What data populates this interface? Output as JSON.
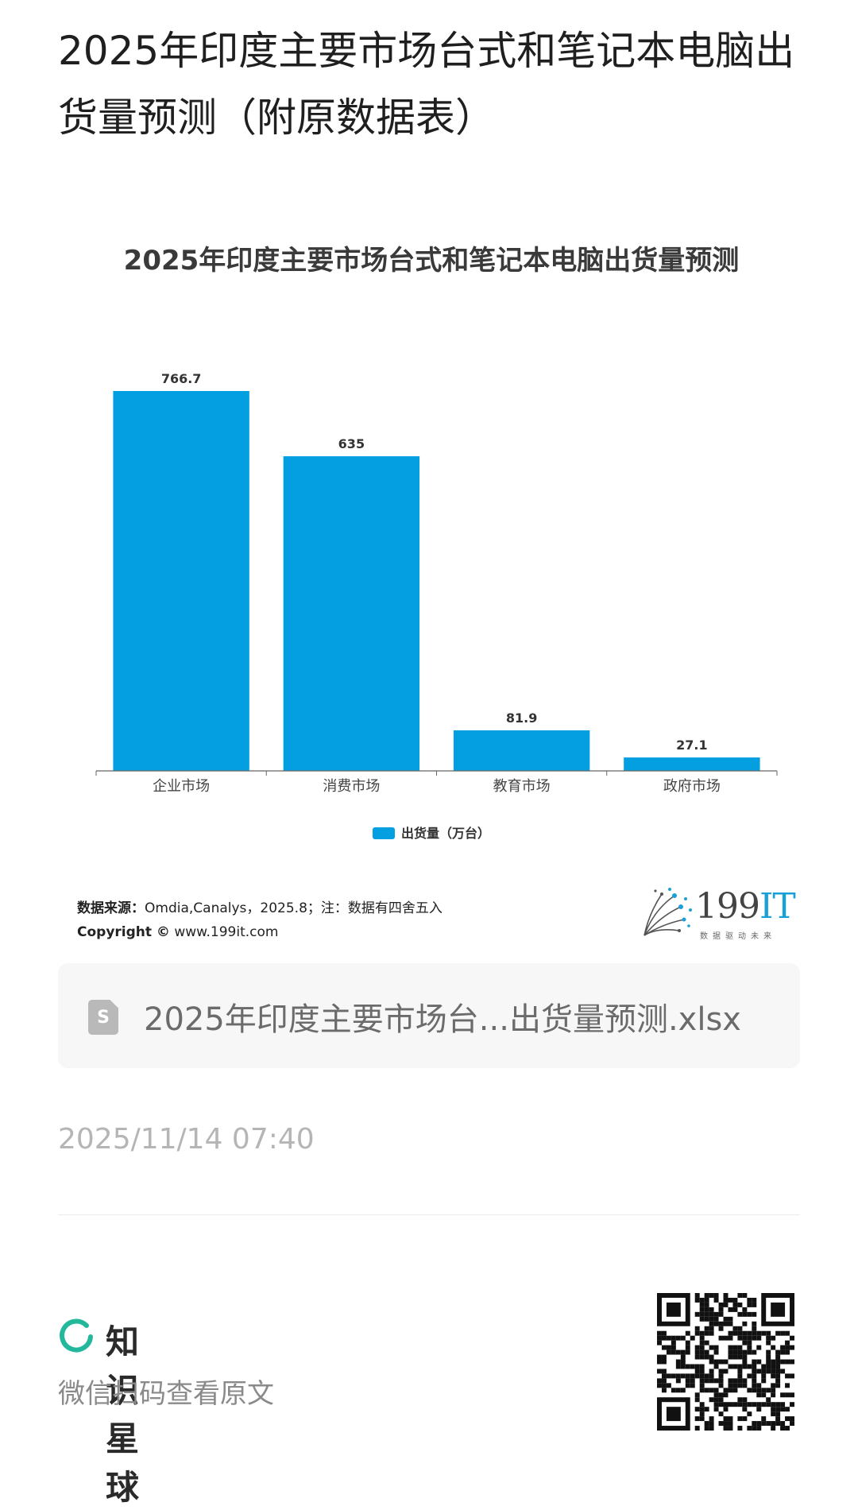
{
  "page": {
    "title": "2025年印度主要市场台式和笔记本电脑出货量预测（附原数据表）"
  },
  "chart_data": {
    "type": "bar",
    "title": "2025年印度主要市场台式和笔记本电脑出货量预测",
    "categories": [
      "企业市场",
      "消费市场",
      "教育市场",
      "政府市场"
    ],
    "series": [
      {
        "name": "出货量（万台）",
        "values": [
          766.7,
          635,
          81.9,
          27.1
        ],
        "labels": [
          "766.7",
          "635",
          "81.9",
          "27.1"
        ]
      }
    ],
    "ylim": [
      0,
      800
    ],
    "grid": false,
    "legend_position": "bottom",
    "bar_color": "#049FE1"
  },
  "footer": {
    "source_label": "数据来源：",
    "source_text": "Omdia,Canalys，2025.8；注：数据有四舍五入",
    "copyright_label": "Copyright ©",
    "copyright_text": "www.199it.com",
    "brand_main": "199",
    "brand_accent": "IT",
    "brand_tagline": "数据驱动未来"
  },
  "attachment": {
    "icon": "spreadsheet-file-icon",
    "icon_glyph": "S",
    "filename": "2025年印度主要市场台...出货量预测.xlsx"
  },
  "timestamp": "2025/11/14 07:40",
  "planet": {
    "name": "知识星球",
    "hint": "微信扫码查看原文",
    "accent": "#23B89B"
  }
}
